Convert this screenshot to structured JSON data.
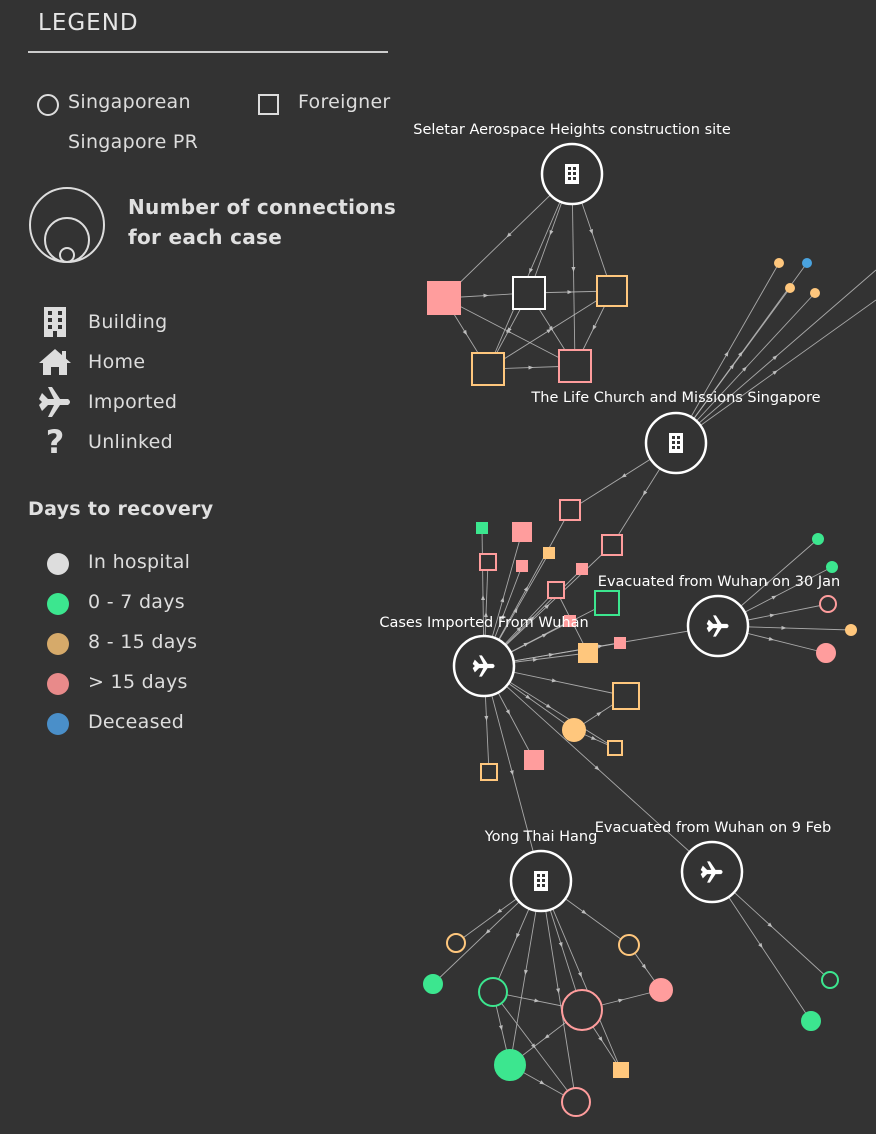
{
  "legend": {
    "title": "LEGEND",
    "singaporean_label": "Singaporean",
    "foreigner_label": "Foreigner",
    "pr_label": "Singapore PR",
    "connections_label_line1": "Number of connections",
    "connections_label_line2": "for each case",
    "icons": [
      {
        "label": "Building",
        "icon": "building-icon"
      },
      {
        "label": "Home",
        "icon": "home-icon"
      },
      {
        "label": "Imported",
        "icon": "plane-icon"
      },
      {
        "label": "Unlinked",
        "icon": "question-icon"
      }
    ],
    "recovery_title": "Days to recovery",
    "recovery": [
      {
        "label": "In hospital",
        "color": "#dddddd"
      },
      {
        "label": "0 - 7 days",
        "color": "#3ce68f"
      },
      {
        "label": "8 - 15 days",
        "color": "#d6aa6a"
      },
      {
        "label": "> 15 days",
        "color": "#e88a8a"
      },
      {
        "label": "Deceased",
        "color": "#4a8fc9"
      }
    ]
  },
  "colors": {
    "background": "#333333",
    "link": "#bdbdbd",
    "hub": "#ffffff",
    "green": "#3ce68f",
    "orange": "#ffc77d",
    "pink": "#ff9d9d",
    "blue": "#4aa3df"
  },
  "hubs": {
    "seletar": {
      "label": "Seletar Aerospace Heights construction site",
      "icon": "building-icon"
    },
    "lifechurch": {
      "label": "The Life Church and Missions Singapore",
      "icon": "building-icon"
    },
    "imported": {
      "label": "Cases Imported From Wuhan",
      "icon": "plane-icon"
    },
    "wuhan30": {
      "label": "Evacuated from Wuhan on 30 Jan",
      "icon": "plane-icon"
    },
    "yongthai": {
      "label": "Yong Thai Hang",
      "icon": "building-icon"
    },
    "wuhan9": {
      "label": "Evacuated from Wuhan on 9 Feb",
      "icon": "plane-icon"
    }
  }
}
